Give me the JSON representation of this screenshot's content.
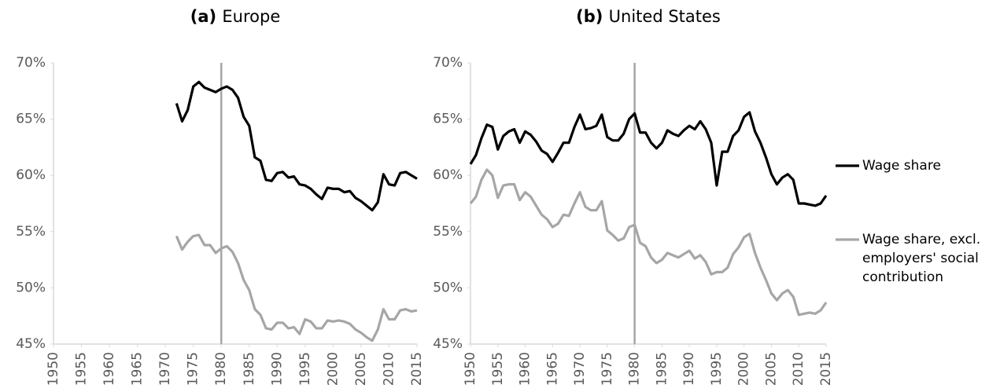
{
  "chart_data": [
    {
      "type": "line",
      "title": "(a) Europe",
      "x": [
        1972,
        1973,
        1974,
        1975,
        1976,
        1977,
        1978,
        1979,
        1980,
        1981,
        1982,
        1983,
        1984,
        1985,
        1986,
        1987,
        1988,
        1989,
        1990,
        1991,
        1992,
        1993,
        1994,
        1995,
        1996,
        1997,
        1998,
        1999,
        2000,
        2001,
        2002,
        2003,
        2004,
        2005,
        2006,
        2007,
        2008,
        2009,
        2010,
        2011,
        2012,
        2013,
        2014,
        2015
      ],
      "series": [
        {
          "name": "Wage share",
          "color": "#000000",
          "values": [
            66.4,
            64.8,
            65.8,
            67.9,
            68.3,
            67.8,
            67.6,
            67.4,
            67.7,
            67.9,
            67.6,
            66.9,
            65.2,
            64.4,
            61.6,
            61.3,
            59.6,
            59.5,
            60.2,
            60.3,
            59.8,
            59.9,
            59.2,
            59.1,
            58.8,
            58.3,
            57.9,
            58.9,
            58.8,
            58.8,
            58.5,
            58.6,
            58.0,
            57.7,
            57.3,
            56.9,
            57.6,
            60.1,
            59.2,
            59.1,
            60.2,
            60.3,
            60.0,
            59.7
          ]
        },
        {
          "name": "Wage share, excl. employers' social contribution",
          "color": "#a6a6a6",
          "values": [
            54.6,
            53.4,
            54.1,
            54.6,
            54.7,
            53.8,
            53.8,
            53.1,
            53.5,
            53.7,
            53.2,
            52.2,
            50.7,
            49.8,
            48.1,
            47.6,
            46.4,
            46.3,
            46.9,
            46.9,
            46.4,
            46.5,
            45.9,
            47.2,
            47.0,
            46.4,
            46.4,
            47.1,
            47.0,
            47.1,
            47.0,
            46.8,
            46.3,
            46.0,
            45.6,
            45.3,
            46.3,
            48.1,
            47.2,
            47.2,
            48.0,
            48.1,
            47.9,
            48.0
          ]
        }
      ],
      "xlim": [
        1950,
        2015
      ],
      "xticks": [
        1950,
        1955,
        1960,
        1965,
        1970,
        1975,
        1980,
        1985,
        1990,
        1995,
        2000,
        2005,
        2010,
        2015
      ],
      "ylim": [
        45,
        70
      ],
      "yticks": [
        {
          "value": 45,
          "label": "45%"
        },
        {
          "value": 50,
          "label": "50%"
        },
        {
          "value": 55,
          "label": "55%"
        },
        {
          "value": 60,
          "label": "60%"
        },
        {
          "value": 65,
          "label": "65%"
        },
        {
          "value": 70,
          "label": "70%"
        }
      ],
      "vline": 1980,
      "grid": false,
      "legend": false
    },
    {
      "type": "line",
      "title": "(b) United States",
      "x": [
        1950,
        1951,
        1952,
        1953,
        1954,
        1955,
        1956,
        1957,
        1958,
        1959,
        1960,
        1961,
        1962,
        1963,
        1964,
        1965,
        1966,
        1967,
        1968,
        1969,
        1970,
        1971,
        1972,
        1973,
        1974,
        1975,
        1976,
        1977,
        1978,
        1979,
        1980,
        1981,
        1982,
        1983,
        1984,
        1985,
        1986,
        1987,
        1988,
        1989,
        1990,
        1991,
        1992,
        1993,
        1994,
        1995,
        1996,
        1997,
        1998,
        1999,
        2000,
        2001,
        2002,
        2003,
        2004,
        2005,
        2006,
        2007,
        2008,
        2009,
        2010,
        2011,
        2012,
        2013,
        2014,
        2015
      ],
      "series": [
        {
          "name": "Wage share",
          "color": "#000000",
          "values": [
            61.0,
            61.8,
            63.3,
            64.5,
            64.3,
            62.3,
            63.5,
            63.9,
            64.1,
            62.9,
            63.9,
            63.6,
            63.0,
            62.2,
            61.9,
            61.2,
            62.0,
            62.9,
            62.9,
            64.3,
            65.4,
            64.1,
            64.2,
            64.4,
            65.4,
            63.4,
            63.1,
            63.1,
            63.7,
            65.0,
            65.5,
            63.8,
            63.8,
            62.9,
            62.4,
            62.9,
            64.0,
            63.7,
            63.5,
            64.0,
            64.4,
            64.1,
            64.8,
            64.1,
            62.9,
            59.1,
            62.1,
            62.1,
            63.5,
            64.0,
            65.2,
            65.6,
            63.9,
            62.9,
            61.6,
            60.1,
            59.2,
            59.8,
            60.1,
            59.6,
            57.5,
            57.5,
            57.4,
            57.3,
            57.5,
            58.2
          ]
        },
        {
          "name": "Wage share, excl. employers' social contribution",
          "color": "#a6a6a6",
          "values": [
            57.5,
            58.1,
            59.6,
            60.5,
            60.0,
            58.0,
            59.1,
            59.2,
            59.2,
            57.8,
            58.5,
            58.1,
            57.3,
            56.5,
            56.1,
            55.4,
            55.7,
            56.5,
            56.4,
            57.5,
            58.5,
            57.2,
            56.9,
            56.9,
            57.7,
            55.1,
            54.7,
            54.2,
            54.4,
            55.4,
            55.6,
            54.0,
            53.7,
            52.7,
            52.2,
            52.5,
            53.1,
            52.9,
            52.7,
            53.0,
            53.3,
            52.6,
            52.9,
            52.3,
            51.2,
            51.4,
            51.4,
            51.8,
            53.0,
            53.6,
            54.5,
            54.8,
            53.1,
            51.8,
            50.7,
            49.5,
            48.9,
            49.5,
            49.8,
            49.2,
            47.6,
            47.7,
            47.8,
            47.7,
            48.0,
            48.7
          ]
        }
      ],
      "xlim": [
        1950,
        2015
      ],
      "xticks": [
        1950,
        1955,
        1960,
        1965,
        1970,
        1975,
        1980,
        1985,
        1990,
        1995,
        2000,
        2005,
        2010,
        2015
      ],
      "ylim": [
        45,
        70
      ],
      "yticks": [
        {
          "value": 45,
          "label": "45%"
        },
        {
          "value": 50,
          "label": "50%"
        },
        {
          "value": 55,
          "label": "55%"
        },
        {
          "value": 60,
          "label": "60%"
        },
        {
          "value": 65,
          "label": "65%"
        },
        {
          "value": 70,
          "label": "70%"
        }
      ],
      "vline": 1980,
      "grid": false,
      "legend": "right"
    }
  ]
}
